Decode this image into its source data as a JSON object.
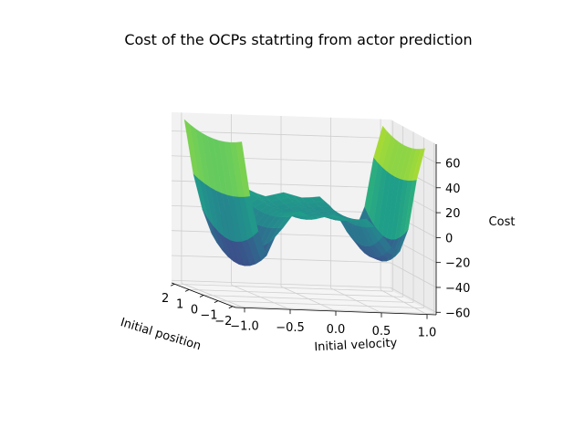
{
  "chart_data": {
    "type": "surface",
    "title": "Cost of the OCPs statrting from actor prediction",
    "xlabel": "Initial position",
    "ylabel": "Initial velocity",
    "zlabel": "Cost",
    "xlim": [
      -2.2,
      2.2
    ],
    "ylim": [
      -1.1,
      1.1
    ],
    "zlim": [
      -62,
      75
    ],
    "x_ticks": [
      "−2",
      "−1",
      "0",
      "1",
      "2"
    ],
    "y_ticks": [
      "−1.0",
      "−0.5",
      "0.0",
      "0.5",
      "1.0"
    ],
    "z_ticks": [
      "60",
      "40",
      "20",
      "0",
      "−20",
      "−40",
      "−60"
    ],
    "colormap": "viridis",
    "grid": true,
    "cost_profile_along_velocity": {
      "velocity": [
        -1.0,
        -0.9,
        -0.75,
        -0.6,
        -0.4,
        -0.2,
        0.0,
        0.2,
        0.4,
        0.55,
        0.7,
        0.8,
        0.9,
        1.0
      ],
      "cost": [
        68,
        20,
        -30,
        -5,
        15,
        8,
        12,
        8,
        10,
        -8,
        -22,
        -10,
        40,
        68
      ]
    }
  }
}
